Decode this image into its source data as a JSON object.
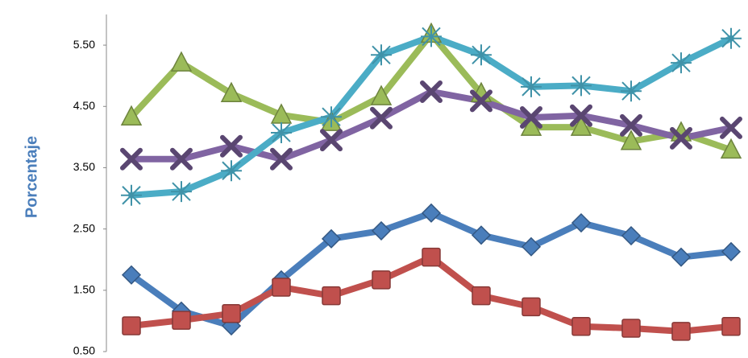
{
  "chart_data": {
    "type": "line",
    "y_label": "Porcentaje",
    "categories": [
      null,
      null,
      null,
      null,
      null,
      null,
      null,
      null,
      null,
      null,
      null,
      null,
      null
    ],
    "ylim": [
      0.5,
      6.0
    ],
    "yticks": [
      {
        "value": 0.5,
        "label": "0.50"
      },
      {
        "value": 1.5,
        "label": "1.50"
      },
      {
        "value": 2.5,
        "label": "2.50"
      },
      {
        "value": 3.5,
        "label": "3.50"
      },
      {
        "value": 4.5,
        "label": "4.50"
      },
      {
        "value": 5.5,
        "label": "5.50"
      }
    ],
    "grid": false,
    "series": [
      {
        "color": "#4a7ebb",
        "marker": "diamond",
        "values": [
          1.75,
          1.16,
          0.92,
          1.67,
          2.34,
          2.47,
          2.76,
          2.4,
          2.21,
          2.6,
          2.39,
          2.04,
          2.13
        ]
      },
      {
        "color": "#c0504d",
        "marker": "square",
        "values": [
          0.92,
          1.01,
          1.12,
          1.55,
          1.41,
          1.67,
          2.04,
          1.41,
          1.23,
          0.91,
          0.88,
          0.83,
          0.91
        ]
      },
      {
        "color": "#9bbb59",
        "marker": "triangle",
        "values": [
          4.33,
          5.21,
          4.71,
          4.36,
          4.24,
          4.66,
          5.68,
          4.71,
          4.16,
          4.16,
          3.93,
          4.07,
          3.79
        ]
      },
      {
        "color": "#8064a2",
        "marker": "x",
        "values": [
          3.64,
          3.64,
          3.85,
          3.64,
          3.95,
          4.31,
          4.74,
          4.59,
          4.32,
          4.35,
          4.19,
          3.98,
          4.15
        ]
      },
      {
        "color": "#4bacc6",
        "marker": "star",
        "values": [
          3.05,
          3.11,
          3.45,
          4.07,
          4.33,
          5.34,
          5.64,
          5.34,
          4.82,
          4.84,
          4.75,
          5.21,
          5.61
        ]
      }
    ]
  }
}
